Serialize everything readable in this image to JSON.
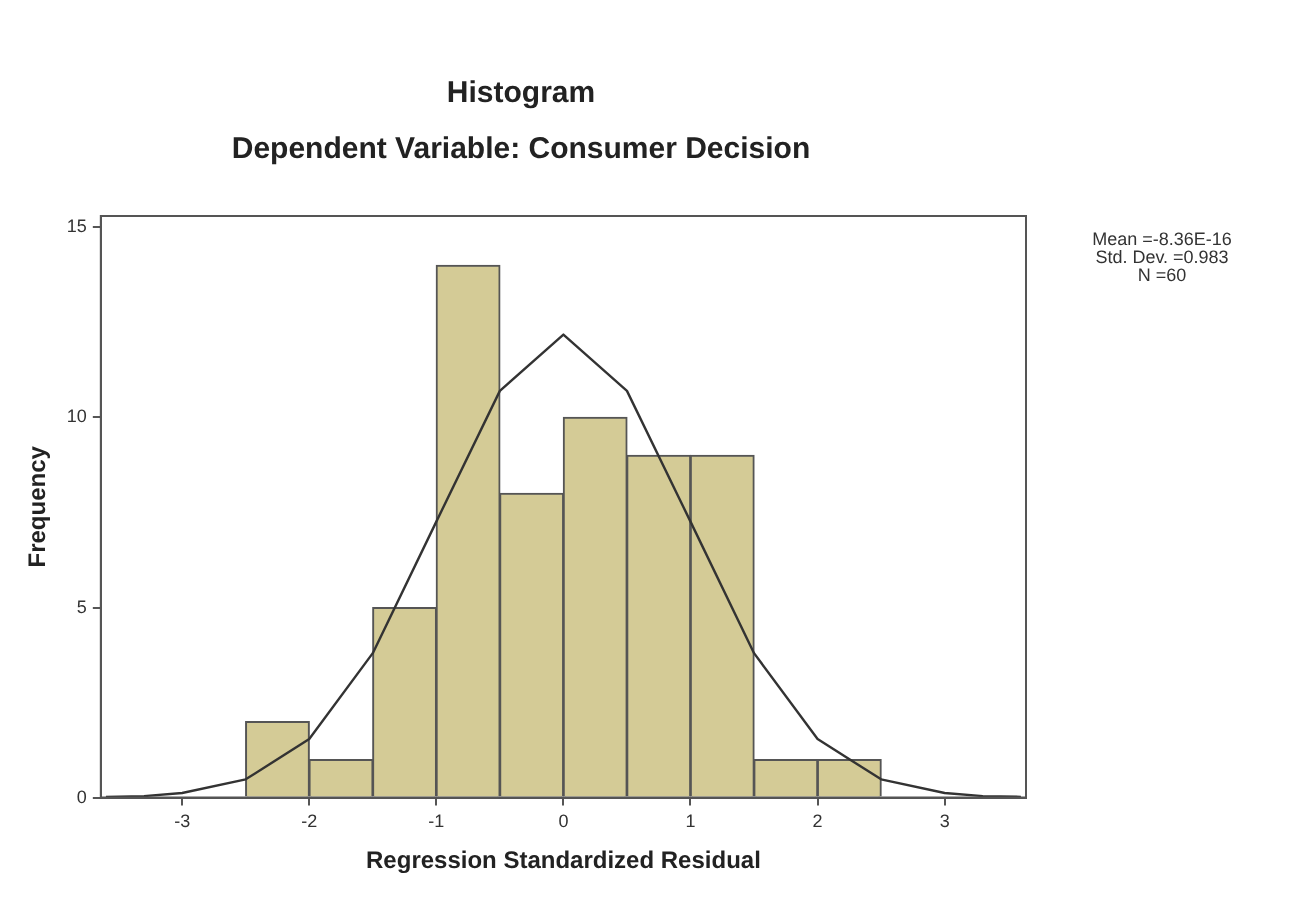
{
  "chart_data": {
    "type": "histogram",
    "title": "Histogram",
    "subtitle": "Dependent Variable: Consumer Decision",
    "xlabel": "Regression Standardized Residual",
    "ylabel": "Frequency",
    "bins": [
      -2.5,
      -2,
      -1.5,
      -1,
      -0.5,
      0,
      0.5,
      1,
      1.5,
      2,
      2.5
    ],
    "values": [
      2,
      1,
      5,
      14,
      8,
      10,
      9,
      9,
      1,
      1
    ],
    "color": "#d4cb96",
    "series": [
      {
        "type": "line",
        "color": "#333333",
        "x": [
          -3.6,
          -3.3,
          -3,
          -2.5,
          -2,
          -1.5,
          -1,
          -0.5,
          0,
          0.5,
          1,
          1.5,
          2,
          2.5,
          3,
          3.3,
          3.6
        ],
        "values": [
          0.02,
          0.04,
          0.12,
          0.48,
          1.54,
          3.8,
          7.26,
          10.7,
          12.18,
          10.7,
          7.26,
          3.8,
          1.54,
          0.48,
          0.12,
          0.04,
          0.02
        ]
      }
    ],
    "xlim": [
      -3.64,
      3.64
    ],
    "xticks": [
      -3,
      -2,
      -1,
      0,
      1,
      2,
      3
    ],
    "ylim": [
      0,
      15.3
    ],
    "yticks": [
      0,
      5,
      10,
      15
    ],
    "grid": false,
    "legend": false,
    "annotations": [
      "Mean =-8.36E-16",
      "Std. Dev. =0.983",
      "N =60"
    ]
  }
}
